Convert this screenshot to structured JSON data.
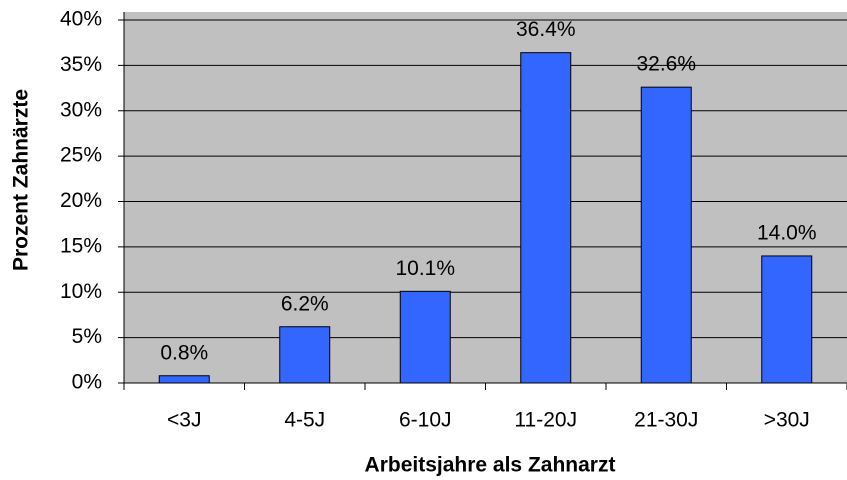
{
  "chart_data": {
    "type": "bar",
    "x_label": "Arbeitsjahre als Zahnarzt",
    "y_label": "Prozent Zahnärzte",
    "categories": [
      "<3J",
      "4-5J",
      "6-10J",
      "11-20J",
      "21-30J",
      ">30J"
    ],
    "values": [
      0.8,
      6.2,
      10.1,
      36.4,
      32.6,
      14.0
    ],
    "value_labels": [
      "0.8%",
      "6.2%",
      "10.1%",
      "36.4%",
      "32.6%",
      "14.0%"
    ],
    "color": "#3366ff",
    "background": "#c0c0c0",
    "ylim": [
      0,
      40
    ],
    "yticks": [
      {
        "value": 0,
        "label": "0%"
      },
      {
        "value": 5,
        "label": "5%"
      },
      {
        "value": 10,
        "label": "10%"
      },
      {
        "value": 15,
        "label": "15%"
      },
      {
        "value": 20,
        "label": "20%"
      },
      {
        "value": 25,
        "label": "25%"
      },
      {
        "value": 30,
        "label": "30%"
      },
      {
        "value": 35,
        "label": "35%"
      },
      {
        "value": 40,
        "label": "40%"
      }
    ],
    "grid": true
  }
}
